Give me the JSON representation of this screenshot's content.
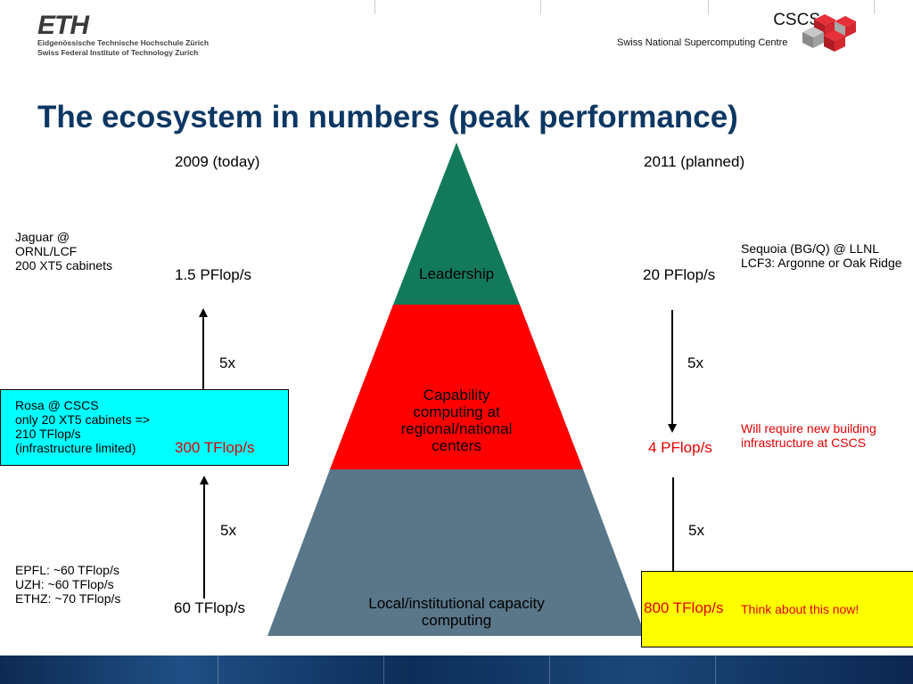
{
  "header": {
    "eth_logo": "ETH",
    "eth_line1": "Eidgenössische Technische Hochschule Zürich",
    "eth_line2": "Swiss Federal Institute of Technology Zurich",
    "cscs_short": "CSCS",
    "cscs_full": "Swiss National Supercomputing Centre"
  },
  "slide": {
    "title": "The ecosystem in numbers (peak performance)",
    "col_2009": "2009 (today)",
    "col_2011": "2011 (planned)"
  },
  "pyramid": {
    "top_label": "Leadership",
    "mid_label": "Capability computing at regional/national centers",
    "base_label": "Local/institutional capacity computing",
    "colors": {
      "top": "#127a5a",
      "mid": "#ff0000",
      "base": "#5a7689"
    }
  },
  "left": {
    "top_note": [
      "Jaguar @",
      "ORNL/LCF",
      "200 XT5 cabinets"
    ],
    "top_value": "1.5 PFlop/s",
    "mid_note": [
      "Rosa @ CSCS",
      "only 20 XT5 cabinets =>",
      "210 TFlop/s",
      "(infrastructure limited)"
    ],
    "mid_value": "300 TFlop/s",
    "base_note": [
      "EPFL: ~60 TFlop/s",
      "UZH: ~60 TFlop/s",
      "ETHZ: ~70 TFlop/s"
    ],
    "base_value": "60 TFlop/s",
    "factor_upper": "5x",
    "factor_lower": "5x"
  },
  "right": {
    "top_note": [
      "Sequoia (BG/Q) @ LLNL",
      "LCF3: Argonne or Oak Ridge"
    ],
    "top_value": "20 PFlop/s",
    "mid_note": [
      "Will require new building",
      "infrastructure at CSCS"
    ],
    "mid_value": "4 PFlop/s",
    "base_note": "Think about this now!",
    "base_value": "800 TFlop/s",
    "factor_upper": "5x",
    "factor_lower": "5x"
  }
}
